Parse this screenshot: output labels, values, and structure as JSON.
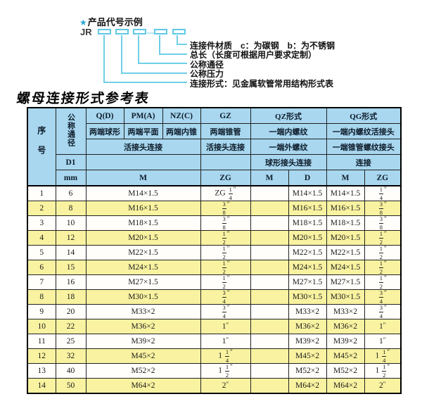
{
  "diagram": {
    "title": "产品代号示例",
    "star": "★",
    "prefix": "JR",
    "dash": "—",
    "labels": [
      "连接件材质　c：为碳钢　b：为不锈钢",
      "总长（长度可根据用户要求定制）",
      "公称通径",
      "公称压力",
      "连接形式：见金属软管常用结构形式表"
    ]
  },
  "table": {
    "title": "螺母连接形式参考表",
    "header": {
      "seq": "序号",
      "dn": "公称通径",
      "d1": "D1",
      "mm": "mm",
      "q": "Q(D)",
      "pm": "PM(A)",
      "nz": "NZ(C)",
      "gz": "GZ",
      "qz": "QZ形式",
      "qg": "QG形式",
      "q_sub": "两端球形",
      "pm_sub": "两端平面",
      "nz_sub": "两端内锥",
      "gz_sub": "两端锥管",
      "qz_sub1": "一端内螺纹",
      "qg_sub1": "一端内螺纹活接头",
      "union_conn": "活接头连接",
      "gz_conn": "活接头连接",
      "qz_sub2": "一端外螺纹",
      "qg_sub2": "一端锥管螺纹接头",
      "qz_conn": "球形接头连接",
      "qg_conn": "连接",
      "m": "M",
      "zg": "ZG",
      "qz_m": "M",
      "qz_d": "D",
      "qg_m": "M",
      "qg_zg": "ZG"
    },
    "rows": [
      [
        "1",
        "6",
        "M14×1.5",
        "ZG 1/4\"",
        "",
        "M14×1.5",
        "M14×1.5",
        "1/4\""
      ],
      [
        "2",
        "8",
        "M16×1.5",
        "3/8\"",
        "",
        "M16×1.5",
        "M16×1.5",
        "3/8\""
      ],
      [
        "3",
        "10",
        "M18×1.5",
        "3/8\"",
        "",
        "M18×1.5",
        "M18×1.5",
        "3/8\""
      ],
      [
        "4",
        "12",
        "M20×1.5",
        "1/2\"",
        "",
        "M20×1.5",
        "M20×1.5",
        "1/2\""
      ],
      [
        "5",
        "14",
        "M22×1.5",
        "1/2\"",
        "",
        "M22×1.5",
        "M22×1.5",
        "1/2\""
      ],
      [
        "6",
        "15",
        "M24×1.5",
        "1/2\"",
        "",
        "M24×1.5",
        "M24×1.5",
        "1/2\""
      ],
      [
        "7",
        "16",
        "M27×1.5",
        "1/2\"",
        "",
        "M27×1.5",
        "M27×1.5",
        "1/2\""
      ],
      [
        "8",
        "18",
        "M30×1.5",
        "3/4\"",
        "",
        "M30×1.5",
        "M30×1.5",
        "3/4\""
      ],
      [
        "9",
        "20",
        "M33×2",
        "3/4\"",
        "",
        "M33×2",
        "M33×2",
        "3/4\""
      ],
      [
        "10",
        "22",
        "M36×2",
        "1\"",
        "",
        "M36×2",
        "M36×2",
        "1\""
      ],
      [
        "11",
        "25",
        "M39×2",
        "1\"",
        "",
        "M39×2",
        "M39×2",
        "1\""
      ],
      [
        "12",
        "32",
        "M45×2",
        "1 1/4\"",
        "",
        "M45×2",
        "M45×2",
        "1 1/4\""
      ],
      [
        "13",
        "40",
        "M52×2",
        "1 1/2\"",
        "",
        "M52×2",
        "M52×2",
        "1 1/2\""
      ],
      [
        "14",
        "50",
        "M64×2",
        "2\"",
        "",
        "M64×2",
        "M64×2",
        "2\""
      ]
    ]
  },
  "colors": {
    "header_blue": "#a8d7ef",
    "row_yellow": "#f9f3a1",
    "leader_cyan": "#6fcfe8",
    "star_blue": "#2ba5d5"
  }
}
